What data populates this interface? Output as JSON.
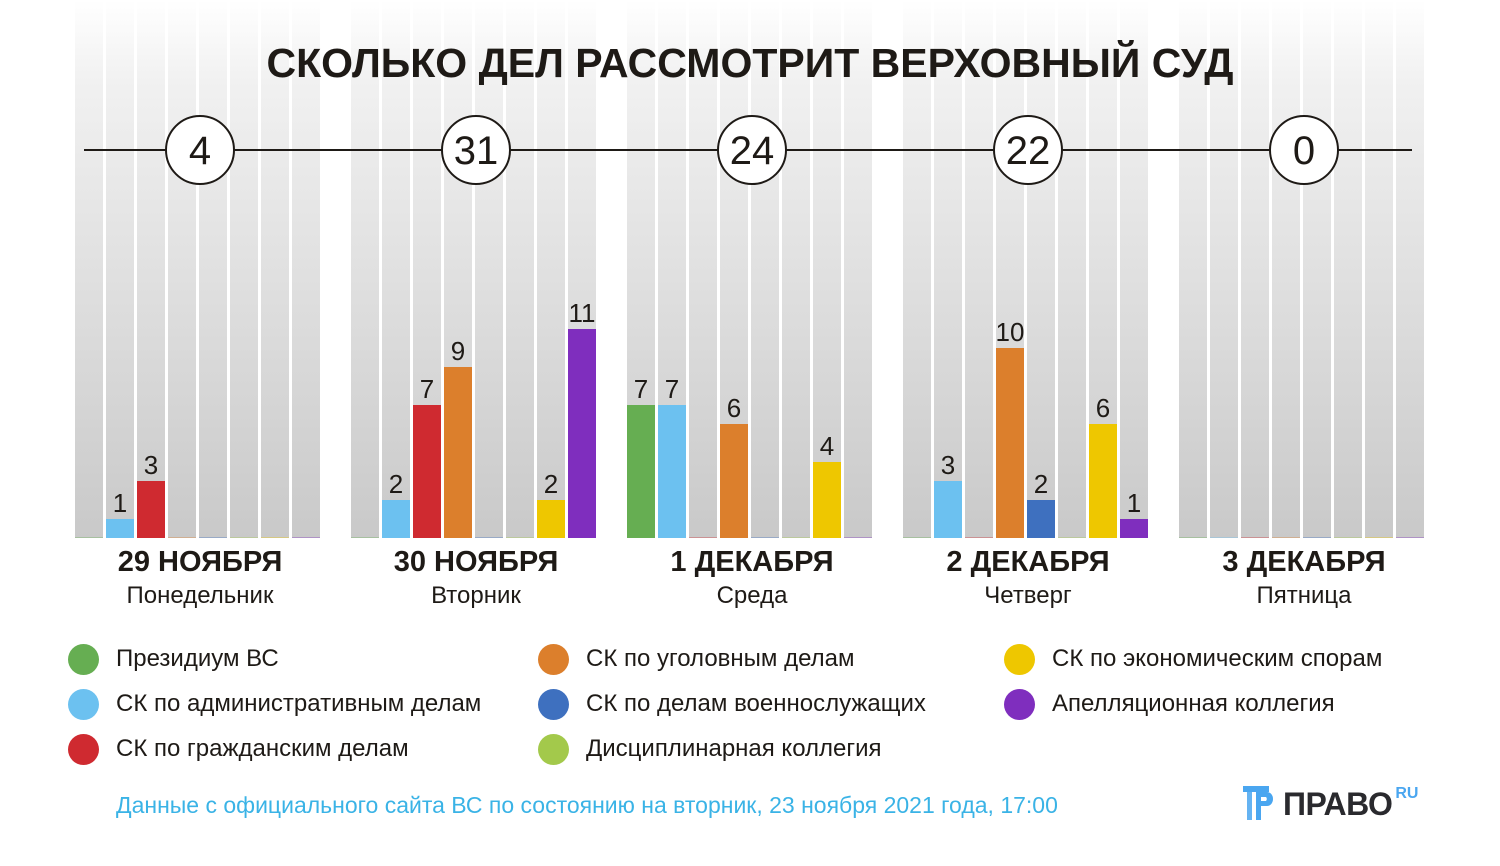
{
  "title": "СКОЛЬКО ДЕЛ РАССМОТРИТ ВЕРХОВНЫЙ СУД",
  "chart_data": {
    "type": "bar",
    "title": "СКОЛЬКО ДЕЛ РАССМОТРИТ ВЕРХОВНЫЙ СУД",
    "xlabel": "",
    "ylabel": "",
    "ylim": [
      0,
      11
    ],
    "grid": false,
    "legend": "bottom",
    "categories": [
      "29 НОЯБРЯ",
      "30 НОЯБРЯ",
      "1 ДЕКАБРЯ",
      "2 ДЕКАБРЯ",
      "3 ДЕКАБРЯ"
    ],
    "weekdays": [
      "Понедельник",
      "Вторник",
      "Среда",
      "Четверг",
      "Пятница"
    ],
    "totals": [
      4,
      31,
      24,
      22,
      0
    ],
    "series": [
      {
        "name": "Президиум ВС",
        "color": "#66ae52",
        "values": [
          0,
          0,
          7,
          0,
          0
        ]
      },
      {
        "name": "СК по административным делам",
        "color": "#6cc1f0",
        "values": [
          1,
          2,
          7,
          3,
          0
        ]
      },
      {
        "name": "СК по гражданским делам",
        "color": "#cf2a30",
        "values": [
          3,
          7,
          0,
          0,
          0
        ]
      },
      {
        "name": "СК по уголовным делам",
        "color": "#dc7f2c",
        "values": [
          0,
          9,
          6,
          10,
          0
        ]
      },
      {
        "name": "СК по делам военнослужащих",
        "color": "#3e70bf",
        "values": [
          0,
          0,
          0,
          2,
          0
        ]
      },
      {
        "name": "Дисциплинарная коллегия",
        "color": "#a3c94b",
        "values": [
          0,
          0,
          0,
          0,
          0
        ]
      },
      {
        "name": "СК по экономическим спорам",
        "color": "#eec700",
        "values": [
          0,
          2,
          4,
          6,
          0
        ]
      },
      {
        "name": "Апелляционная коллегия",
        "color": "#7f2ebe",
        "values": [
          0,
          11,
          0,
          1,
          0
        ]
      }
    ]
  },
  "legend_layout": [
    [
      0,
      1,
      2
    ],
    [
      3,
      4,
      5
    ],
    [
      6,
      7
    ]
  ],
  "footer": {
    "note": "Данные с официального сайта ВС по состоянию на вторник, 23 ноября 2021 года, 17:00"
  },
  "logo": {
    "text": "ПРАВО",
    "suffix": "RU",
    "icon": "pravo-logo-icon"
  }
}
